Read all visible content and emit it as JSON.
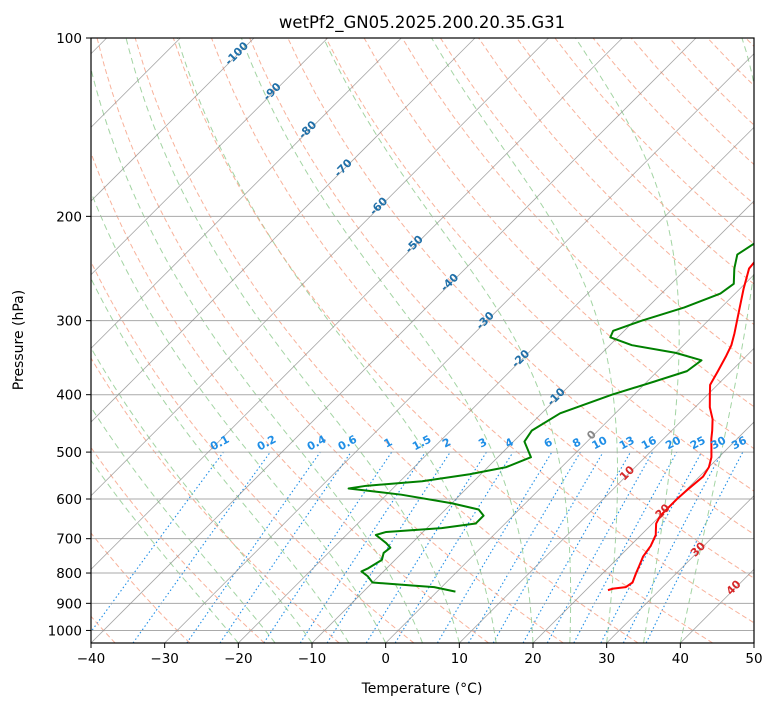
{
  "chart_data": {
    "type": "line",
    "title": "wetPf2_GN05.2025.200.20.35.G31",
    "xlabel": "Temperature (°C)",
    "ylabel": "Pressure (hPa)",
    "xlim": [
      -40,
      50
    ],
    "ylim": [
      1050,
      100
    ],
    "y_scale": "log",
    "grid": true,
    "x_ticks": [
      "−40",
      "−30",
      "−20",
      "−10",
      "0",
      "10",
      "20",
      "30",
      "40",
      "50"
    ],
    "y_ticks": [
      "100",
      "200",
      "300",
      "400",
      "500",
      "600",
      "700",
      "800",
      "900",
      "1000"
    ],
    "series": [
      {
        "color": "#ff0000",
        "points": [
          [
            23.0,
            855
          ],
          [
            23.5,
            850
          ],
          [
            25.0,
            845
          ],
          [
            25.3,
            830
          ],
          [
            24.5,
            800
          ],
          [
            24.0,
            780
          ],
          [
            23.2,
            750
          ],
          [
            22.8,
            720
          ],
          [
            22.0,
            690
          ],
          [
            21.5,
            680
          ],
          [
            20.5,
            660
          ],
          [
            20.0,
            640
          ],
          [
            20.0,
            600
          ],
          [
            20.2,
            575
          ],
          [
            20.5,
            550
          ],
          [
            20.0,
            530
          ],
          [
            19.0,
            510
          ],
          [
            17.6,
            490
          ],
          [
            16.5,
            475
          ],
          [
            15.5,
            460
          ],
          [
            14.0,
            440
          ],
          [
            12.0,
            420
          ],
          [
            10.3,
            400
          ],
          [
            9.0,
            385
          ],
          [
            8.2,
            365
          ],
          [
            7.3,
            345
          ],
          [
            6.5,
            330
          ],
          [
            5.3,
            315
          ],
          [
            3.0,
            290
          ],
          [
            0.5,
            265
          ],
          [
            -1.5,
            245
          ],
          [
            -2.0,
            225
          ],
          [
            -2.2,
            210
          ],
          [
            -1.8,
            200
          ],
          [
            0.0,
            180
          ],
          [
            2.0,
            167
          ],
          [
            4.0,
            155
          ],
          [
            7.5,
            140
          ],
          [
            9.5,
            130
          ],
          [
            11.5,
            121
          ],
          [
            13.0,
            115
          ],
          [
            14.5,
            110
          ],
          [
            17.0,
            104
          ],
          [
            18.0,
            100
          ]
        ]
      },
      {
        "color": "#008000",
        "points": [
          [
            2.5,
            860
          ],
          [
            -1.0,
            845
          ],
          [
            -4.0,
            840
          ],
          [
            -10.0,
            830
          ],
          [
            -11.5,
            810
          ],
          [
            -13.0,
            795
          ],
          [
            -12.5,
            785
          ],
          [
            -11.8,
            760
          ],
          [
            -12.5,
            740
          ],
          [
            -12.3,
            725
          ],
          [
            -13.5,
            712
          ],
          [
            -16.0,
            690
          ],
          [
            -15.0,
            682
          ],
          [
            -8.0,
            672
          ],
          [
            -4.0,
            660
          ],
          [
            -4.0,
            640
          ],
          [
            -5.5,
            625
          ],
          [
            -10.0,
            610
          ],
          [
            -18.0,
            590
          ],
          [
            -26.0,
            576
          ],
          [
            -24.0,
            570
          ],
          [
            -17.0,
            560
          ],
          [
            -11.5,
            545
          ],
          [
            -7.5,
            530
          ],
          [
            -5.5,
            510
          ],
          [
            -8.5,
            480
          ],
          [
            -9.0,
            460
          ],
          [
            -7.5,
            430
          ],
          [
            -3.0,
            400
          ],
          [
            1.0,
            380
          ],
          [
            4.0,
            365
          ],
          [
            4.5,
            350
          ],
          [
            0.0,
            340
          ],
          [
            -7.0,
            330
          ],
          [
            -11.0,
            320
          ],
          [
            -11.5,
            312
          ],
          [
            -9.0,
            300
          ],
          [
            -5.0,
            285
          ],
          [
            -2.0,
            270
          ],
          [
            -1.5,
            260
          ],
          [
            -3.5,
            245
          ],
          [
            -5.0,
            232
          ],
          [
            -4.0,
            220
          ],
          [
            -2.5,
            210
          ],
          [
            -1.7,
            195
          ],
          [
            -1.0,
            175
          ],
          [
            -1.0,
            155
          ],
          [
            -0.5,
            140
          ],
          [
            2.0,
            125
          ],
          [
            5.0,
            115
          ],
          [
            8.5,
            105
          ],
          [
            10.0,
            100
          ]
        ]
      }
    ],
    "dry_adiabat_labels": [
      "-100",
      "-90",
      "-80",
      "-70",
      "-60",
      "-50",
      "-40",
      "-30",
      "-20",
      "-10",
      "0",
      "10",
      "20",
      "30",
      "40"
    ],
    "mixing_ratio_labels": [
      "0.1",
      "0.2",
      "0.4",
      "0.6",
      "1",
      "1.5",
      "2",
      "3",
      "4",
      "6",
      "8",
      "10",
      "13",
      "16",
      "20",
      "25",
      "30",
      "36"
    ],
    "colors": {
      "temperature": "#ff0000",
      "dewpoint": "#008000",
      "isotherm": "#888888",
      "isobar": "#aaaaaa",
      "dry_adiabat": "#f7a58a",
      "moist_adiabat": "#8cc98c",
      "mixing_ratio": "#1f8ee6",
      "dry_adiabat_label_cold": "#1f6fa8",
      "dry_adiabat_label_warm": "#d62728",
      "dry_adiabat_label_zero": "#888888"
    }
  }
}
